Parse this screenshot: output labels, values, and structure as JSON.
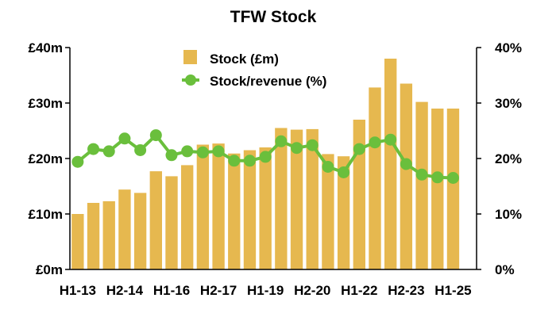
{
  "chart_data": {
    "type": "bar+line",
    "title": "TFW Stock",
    "categories": [
      "H1-13",
      "H2-13",
      "H1-14",
      "H2-14",
      "H1-15",
      "H2-15",
      "H1-16",
      "H2-16",
      "H1-17",
      "H2-17",
      "H1-18",
      "H2-18",
      "H1-19",
      "H2-19",
      "H1-20",
      "H2-20",
      "H1-21",
      "H2-21",
      "H1-22",
      "H2-22",
      "H1-23",
      "H2-23",
      "H1-24",
      "H2-24",
      "H1-25",
      "H2-25"
    ],
    "x_tick_labels": [
      "H1-13",
      "H2-14",
      "H1-16",
      "H2-17",
      "H1-19",
      "H2-20",
      "H1-22",
      "H2-23",
      "H1-25"
    ],
    "series": [
      {
        "name": "Stock (£m)",
        "type": "bar",
        "axis": "left",
        "color": "#e6b84f",
        "values": [
          10.0,
          12.0,
          12.3,
          14.4,
          13.8,
          17.7,
          16.8,
          18.8,
          22.5,
          22.7,
          20.9,
          21.5,
          22.0,
          25.5,
          25.2,
          25.3,
          20.8,
          20.4,
          27.0,
          32.8,
          38.0,
          33.5,
          30.2,
          29.0,
          29.0,
          0
        ]
      },
      {
        "name": "Stock/revenue (%)",
        "type": "line",
        "axis": "right",
        "color": "#6abf3c",
        "values": [
          19.4,
          21.7,
          21.3,
          23.6,
          21.5,
          24.2,
          20.6,
          21.3,
          21.1,
          21.3,
          19.6,
          19.6,
          20.3,
          23.1,
          21.9,
          22.4,
          18.5,
          17.5,
          21.7,
          22.9,
          23.4,
          19.0,
          17.1,
          16.6,
          16.5,
          null
        ]
      }
    ],
    "y_left": {
      "min": 0,
      "max": 40,
      "ticks": [
        "£0m",
        "£10m",
        "£20m",
        "£30m",
        "£40m"
      ]
    },
    "y_right": {
      "min": 0,
      "max": 40,
      "ticks": [
        "0%",
        "10%",
        "20%",
        "30%",
        "40%"
      ]
    },
    "legend_placement": "top-center",
    "grid": false
  }
}
